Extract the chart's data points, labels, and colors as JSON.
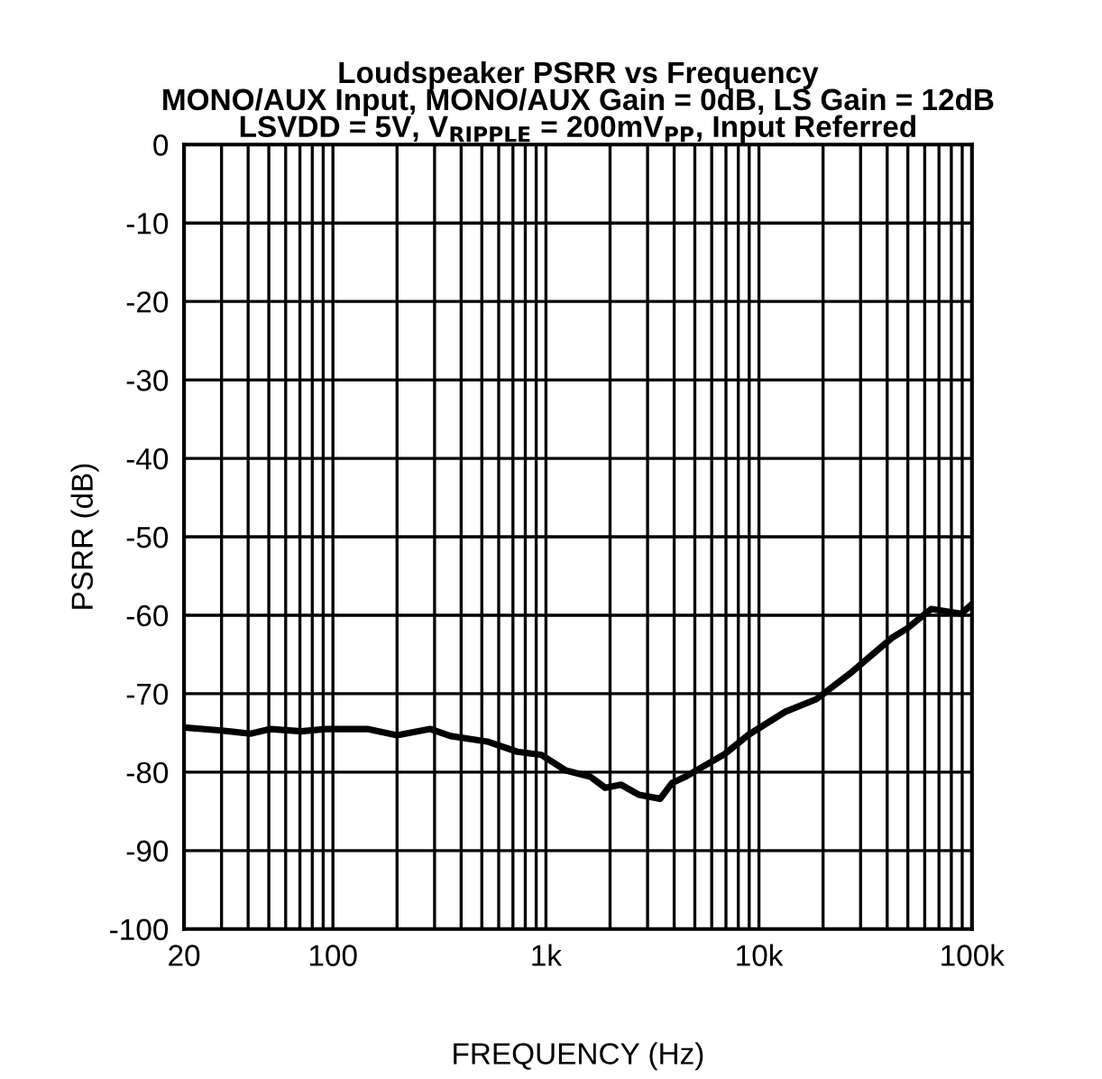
{
  "chart_data": {
    "type": "line",
    "title": "Loudspeaker PSRR vs Frequency\nMONO/AUX Input, MONO/AUX Gain = 0dB, LS Gain = 12dB\nLSVDD = 5V, V$_{RIPPLE}$ = 200mV$_{PP}$, Input Referred",
    "xlabel": "FREQUENCY (Hz)",
    "ylabel": "PSRR (dB)",
    "log": "x",
    "grid": true,
    "marker": "none",
    "line_style": "solid",
    "xlim": [
      20,
      100000
    ],
    "ylim": [
      -100,
      0
    ],
    "xticks": [
      {
        "value": 20,
        "label": "20"
      },
      {
        "value": 30,
        "label": null
      },
      {
        "value": 40,
        "label": null
      },
      {
        "value": 50,
        "label": null
      },
      {
        "value": 60,
        "label": null
      },
      {
        "value": 70,
        "label": null
      },
      {
        "value": 80,
        "label": null
      },
      {
        "value": 90,
        "label": null
      },
      {
        "value": 100,
        "label": "100"
      },
      {
        "value": 200,
        "label": null
      },
      {
        "value": 300,
        "label": null
      },
      {
        "value": 400,
        "label": null
      },
      {
        "value": 500,
        "label": null
      },
      {
        "value": 600,
        "label": null
      },
      {
        "value": 700,
        "label": null
      },
      {
        "value": 800,
        "label": null
      },
      {
        "value": 900,
        "label": null
      },
      {
        "value": 1000,
        "label": "1k"
      },
      {
        "value": 2000,
        "label": null
      },
      {
        "value": 3000,
        "label": null
      },
      {
        "value": 4000,
        "label": null
      },
      {
        "value": 5000,
        "label": null
      },
      {
        "value": 6000,
        "label": null
      },
      {
        "value": 7000,
        "label": null
      },
      {
        "value": 8000,
        "label": null
      },
      {
        "value": 9000,
        "label": null
      },
      {
        "value": 10000,
        "label": "10k"
      },
      {
        "value": 20000,
        "label": null
      },
      {
        "value": 30000,
        "label": null
      },
      {
        "value": 40000,
        "label": null
      },
      {
        "value": 50000,
        "label": null
      },
      {
        "value": 60000,
        "label": null
      },
      {
        "value": 70000,
        "label": null
      },
      {
        "value": 80000,
        "label": null
      },
      {
        "value": 90000,
        "label": null
      },
      {
        "value": 100000,
        "label": "100k"
      }
    ],
    "yticks": [
      0,
      -10,
      -20,
      -30,
      -40,
      -50,
      -60,
      -70,
      -80,
      -90,
      -100
    ],
    "series": [
      {
        "color": "#000000",
        "x": [
          20,
          30,
          41,
          51,
          71,
          92,
          145,
          200,
          286,
          357,
          530,
          733,
          952,
          1240,
          1620,
          1900,
          2250,
          2740,
          3440,
          3900,
          4580,
          6900,
          8970,
          13300,
          18600,
          27400,
          42000,
          49500,
          64400,
          89000,
          100000
        ],
        "values": [
          -74.3,
          -74.7,
          -75.1,
          -74.5,
          -74.8,
          -74.5,
          -74.5,
          -75.3,
          -74.5,
          -75.4,
          -76.1,
          -77.4,
          -77.8,
          -79.8,
          -80.6,
          -82.0,
          -81.6,
          -82.9,
          -83.4,
          -81.4,
          -80.5,
          -77.7,
          -75.2,
          -72.3,
          -70.7,
          -67.2,
          -62.9,
          -61.7,
          -59.2,
          -59.8,
          -58.6
        ]
      }
    ]
  }
}
